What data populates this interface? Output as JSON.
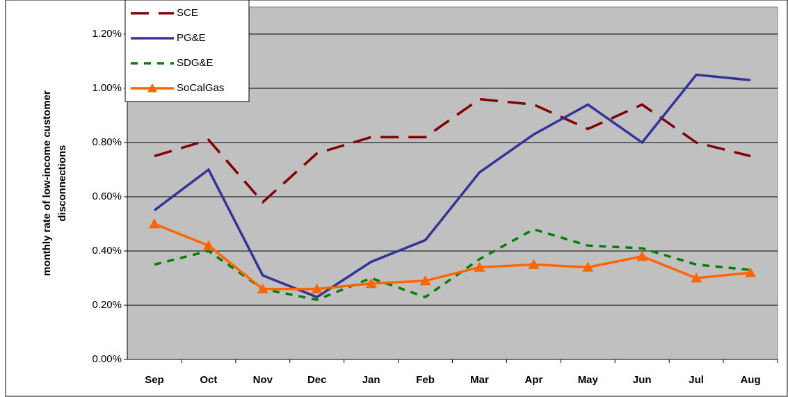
{
  "chart_data": {
    "type": "line",
    "y_label": [
      "monthly rate of low-income customer",
      "disconnections"
    ],
    "categories": [
      "Sep",
      "Oct",
      "Nov",
      "Dec",
      "Jan",
      "Feb",
      "Mar",
      "Apr",
      "May",
      "Jun",
      "Jul",
      "Aug"
    ],
    "series": [
      {
        "name": "SCE",
        "color": "#800000",
        "dash": "dashed",
        "values": [
          0.75,
          0.81,
          0.58,
          0.76,
          0.82,
          0.82,
          0.96,
          0.94,
          0.85,
          0.94,
          0.8,
          0.75
        ]
      },
      {
        "name": "PG&E",
        "color": "#333399",
        "dash": "solid",
        "values": [
          0.55,
          0.7,
          0.31,
          0.23,
          0.36,
          0.44,
          0.69,
          0.83,
          0.94,
          0.8,
          1.05,
          1.03
        ]
      },
      {
        "name": "SDG&E",
        "color": "#008000",
        "dash": "dotted",
        "values": [
          0.35,
          0.4,
          0.26,
          0.22,
          0.3,
          0.23,
          0.37,
          0.48,
          0.42,
          0.41,
          0.35,
          0.33
        ]
      },
      {
        "name": "SoCalGas",
        "color": "#ff6600",
        "dash": "solid",
        "marker": "triangle",
        "values": [
          0.5,
          0.42,
          0.26,
          0.26,
          0.28,
          0.29,
          0.34,
          0.35,
          0.34,
          0.38,
          0.3,
          0.32
        ]
      }
    ],
    "ylim": [
      0,
      1.3
    ],
    "yticks": [
      {
        "value": 0,
        "label": "0.00%"
      },
      {
        "value": 0.2,
        "label": "0.20%"
      },
      {
        "value": 0.4,
        "label": "0.40%"
      },
      {
        "value": 0.6,
        "label": "0.60%"
      },
      {
        "value": 0.8,
        "label": "0.80%"
      },
      {
        "value": 1.0,
        "label": "1.00%"
      },
      {
        "value": 1.2,
        "label": "1.20%"
      }
    ],
    "grid": true,
    "legend": "top-left"
  }
}
